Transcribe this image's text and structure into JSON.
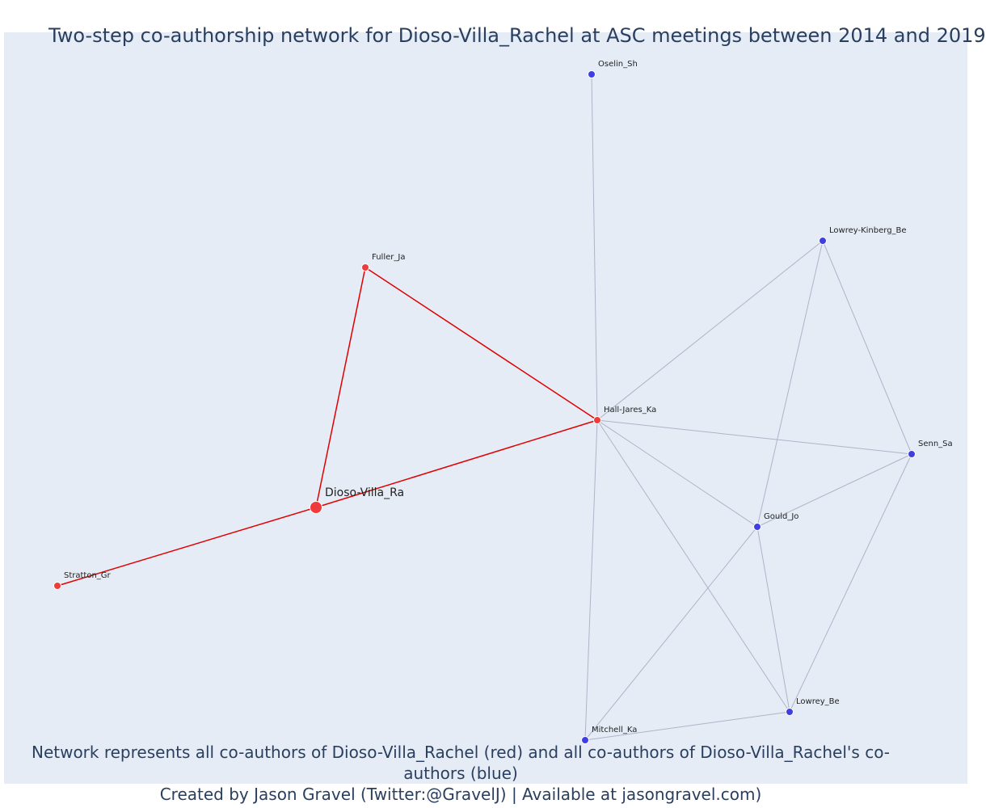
{
  "title": "Two-step co-authorship network for Dioso-Villa_Rachel at ASC meetings between 2014 and 2019",
  "footer": {
    "line1": "Network represents all co-authors of Dioso-Villa_Rachel (red) and all co-authors of Dioso-Villa_Rachel's co-authors (blue)",
    "line2": "Created by Jason Gravel (Twitter:@GravelJ) | Available at jasongravel.com)"
  },
  "colors": {
    "red_node": "#ef3b3b",
    "blue_node": "#3f3fe0",
    "red_edge": "#e00000",
    "gray_edge": "#b0b3c8",
    "plot_bg": "#e5ecf6",
    "title_text": "#2a3f5f"
  },
  "nodes": [
    {
      "id": "Dioso-Villa_Ra",
      "label": "Dioso-Villa_Ra",
      "group": "focal"
    },
    {
      "id": "Fuller_Ja",
      "label": "Fuller_Ja",
      "group": "red"
    },
    {
      "id": "Hall-Jares_Ka",
      "label": "Hall-Jares_Ka",
      "group": "red"
    },
    {
      "id": "Stratton_Gr",
      "label": "Stratton_Gr",
      "group": "red"
    },
    {
      "id": "Oselin_Sh",
      "label": "Oselin_Sh",
      "group": "blue"
    },
    {
      "id": "Lowrey-Kinberg_Be",
      "label": "Lowrey-Kinberg_Be",
      "group": "blue"
    },
    {
      "id": "Senn_Sa",
      "label": "Senn_Sa",
      "group": "blue"
    },
    {
      "id": "Gould_Jo",
      "label": "Gould_Jo",
      "group": "blue"
    },
    {
      "id": "Lowrey_Be",
      "label": "Lowrey_Be",
      "group": "blue"
    },
    {
      "id": "Mitchell_Ka",
      "label": "Mitchell_Ka",
      "group": "blue"
    }
  ],
  "edges": [
    {
      "source": "Dioso-Villa_Ra",
      "target": "Fuller_Ja",
      "type": "red"
    },
    {
      "source": "Dioso-Villa_Ra",
      "target": "Hall-Jares_Ka",
      "type": "red"
    },
    {
      "source": "Dioso-Villa_Ra",
      "target": "Stratton_Gr",
      "type": "red"
    },
    {
      "source": "Fuller_Ja",
      "target": "Hall-Jares_Ka",
      "type": "red"
    },
    {
      "source": "Hall-Jares_Ka",
      "target": "Oselin_Sh",
      "type": "gray"
    },
    {
      "source": "Hall-Jares_Ka",
      "target": "Lowrey-Kinberg_Be",
      "type": "gray"
    },
    {
      "source": "Hall-Jares_Ka",
      "target": "Senn_Sa",
      "type": "gray"
    },
    {
      "source": "Hall-Jares_Ka",
      "target": "Gould_Jo",
      "type": "gray"
    },
    {
      "source": "Hall-Jares_Ka",
      "target": "Lowrey_Be",
      "type": "gray"
    },
    {
      "source": "Hall-Jares_Ka",
      "target": "Mitchell_Ka",
      "type": "gray"
    },
    {
      "source": "Lowrey-Kinberg_Be",
      "target": "Gould_Jo",
      "type": "gray"
    },
    {
      "source": "Lowrey-Kinberg_Be",
      "target": "Senn_Sa",
      "type": "gray"
    },
    {
      "source": "Senn_Sa",
      "target": "Gould_Jo",
      "type": "gray"
    },
    {
      "source": "Senn_Sa",
      "target": "Lowrey_Be",
      "type": "gray"
    },
    {
      "source": "Gould_Jo",
      "target": "Lowrey_Be",
      "type": "gray"
    },
    {
      "source": "Gould_Jo",
      "target": "Mitchell_Ka",
      "type": "gray"
    },
    {
      "source": "Lowrey_Be",
      "target": "Mitchell_Ka",
      "type": "gray"
    }
  ]
}
